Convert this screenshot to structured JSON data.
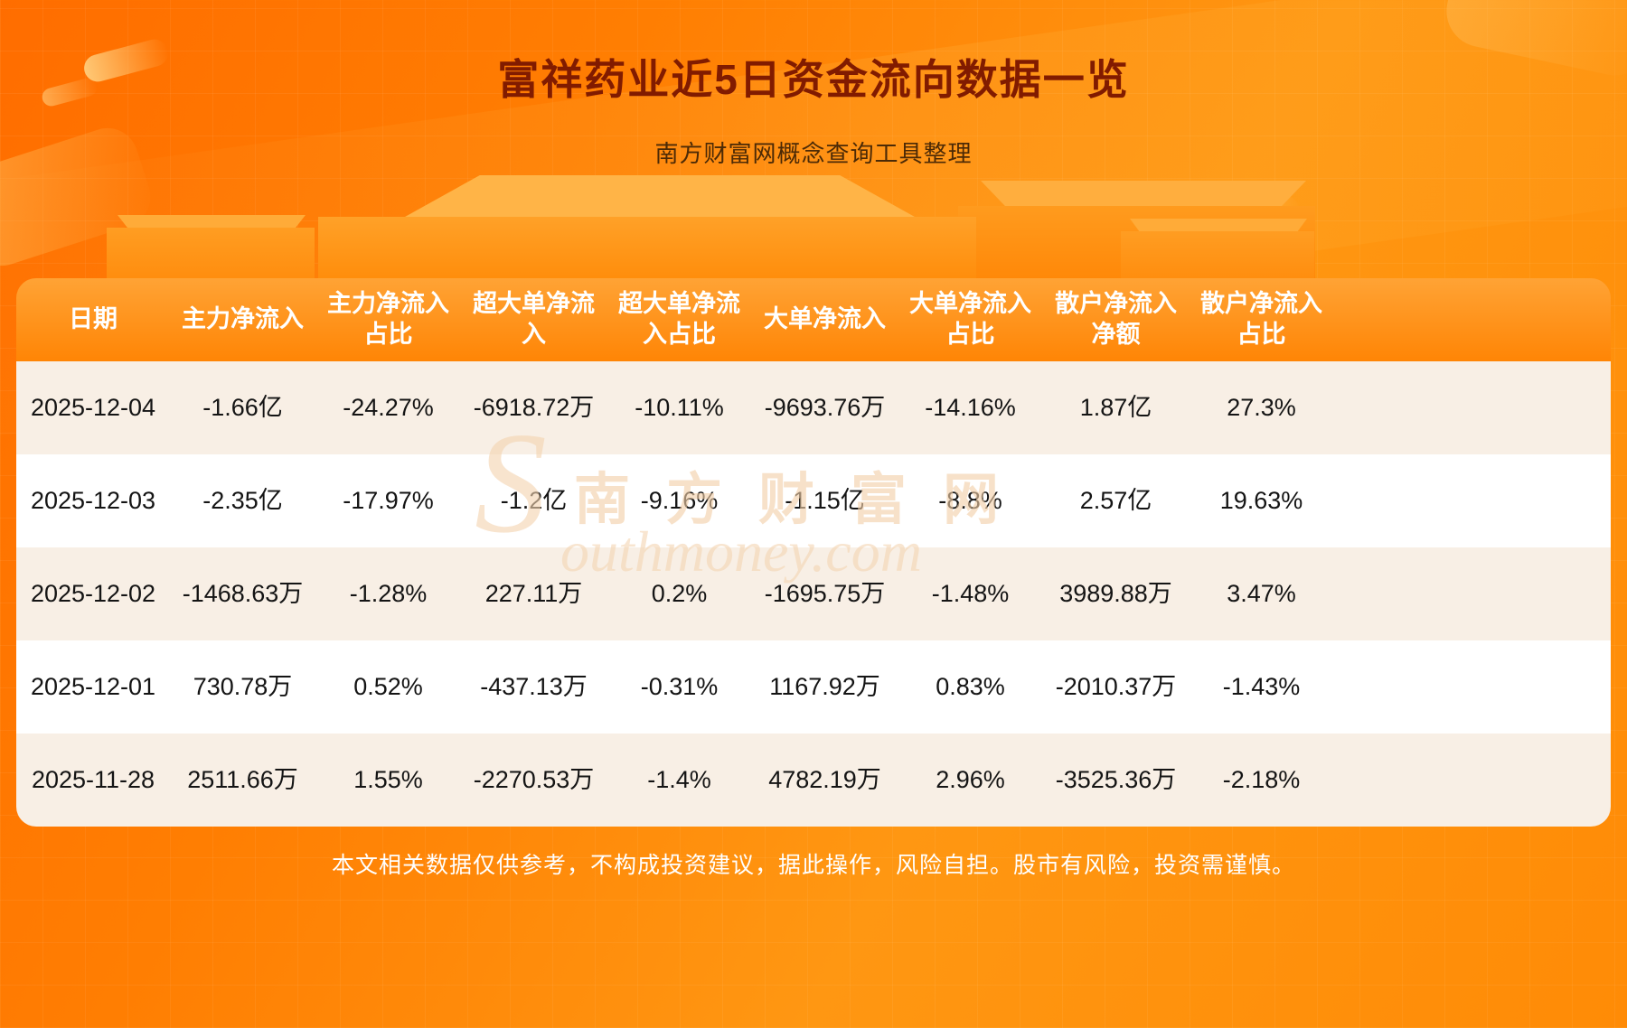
{
  "header": {
    "title": "富祥药业近5日资金流向数据一览",
    "subtitle": "南方财富网概念查询工具整理"
  },
  "watermark": {
    "en_initial": "S",
    "cn": "南方财富网",
    "en_rest": "outhmoney.com"
  },
  "footer": {
    "disclaimer": "本文相关数据仅供参考，不构成投资建议，据此操作，风险自担。股市有风险，投资需谨慎。"
  },
  "chart_data": {
    "type": "table",
    "title": "富祥药业近5日资金流向数据一览",
    "columns": [
      "日期",
      "主力净流入",
      "主力净流入占比",
      "超大单净流入",
      "超大单净流入占比",
      "大单净流入",
      "大单净流入占比",
      "散户净流入净额",
      "散户净流入占比"
    ],
    "rows": [
      [
        "2025-12-04",
        "-1.66亿",
        "-24.27%",
        "-6918.72万",
        "-10.11%",
        "-9693.76万",
        "-14.16%",
        "1.87亿",
        "27.3%"
      ],
      [
        "2025-12-03",
        "-2.35亿",
        "-17.97%",
        "-1.2亿",
        "-9.16%",
        "-1.15亿",
        "-8.8%",
        "2.57亿",
        "19.63%"
      ],
      [
        "2025-12-02",
        "-1468.63万",
        "-1.28%",
        "227.11万",
        "0.2%",
        "-1695.75万",
        "-1.48%",
        "3989.88万",
        "3.47%"
      ],
      [
        "2025-12-01",
        "730.78万",
        "0.52%",
        "-437.13万",
        "-0.31%",
        "1167.92万",
        "0.83%",
        "-2010.37万",
        "-1.43%"
      ],
      [
        "2025-11-28",
        "2511.66万",
        "1.55%",
        "-2270.53万",
        "-1.4%",
        "4782.19万",
        "2.96%",
        "-3525.36万",
        "-2.18%"
      ]
    ]
  },
  "colors": {
    "background_accent": "#ff8000",
    "table_header_top": "#ffa335",
    "table_header_bottom": "#ff8505",
    "row_alternate": "#f8efe5",
    "row_white": "#ffffff",
    "title_color": "#811b00",
    "footer_text": "#ffffff"
  }
}
